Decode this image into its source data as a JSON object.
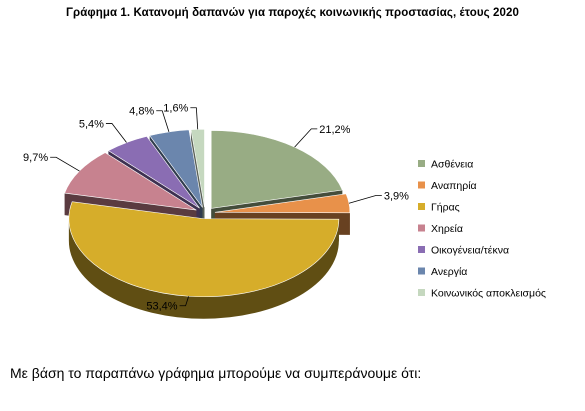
{
  "title": "Γράφημα 1. Κατανομή δαπανών για παροχές κοινωνικής προστασίας, έτους 2020",
  "question": "Με βάση το παραπάνω γράφημα μπορούμε να συμπεράνουμε ότι:",
  "chart_data": {
    "type": "pie",
    "style": "3d-exploded",
    "title": "Γράφημα 1. Κατανομή δαπανών για παροχές κοινωνικής προστασίας, έτους 2020",
    "legend_position": "right",
    "slices": [
      {
        "name": "Ασθένεια",
        "value": 21.2,
        "label": "21,2%",
        "color": "#98ac84"
      },
      {
        "name": "Αναπηρία",
        "value": 3.9,
        "label": "3,9%",
        "color": "#e8914a"
      },
      {
        "name": "Γήρας",
        "value": 53.4,
        "label": "53,4%",
        "color": "#d6ad2a"
      },
      {
        "name": "Χηρεία",
        "value": 9.7,
        "label": "9,7%",
        "color": "#c7828f"
      },
      {
        "name": "Οικογένεια/τέκνα",
        "value": 5.4,
        "label": "5,4%",
        "color": "#8a6db3"
      },
      {
        "name": "Ανεργία",
        "value": 4.8,
        "label": "4,8%",
        "color": "#6b86ad"
      },
      {
        "name": "Κοινωνικός αποκλεισμός",
        "value": 1.6,
        "label": "1,6%",
        "color": "#c5d8bf"
      }
    ]
  }
}
